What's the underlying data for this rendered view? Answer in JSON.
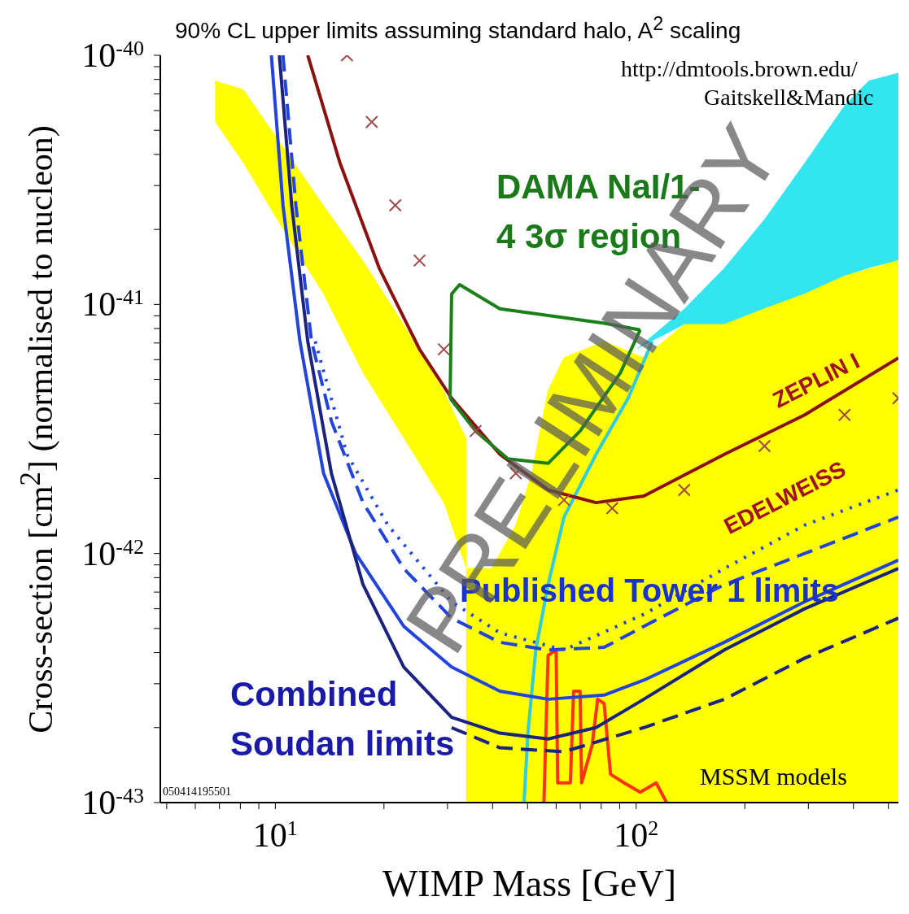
{
  "chart_data": {
    "type": "line",
    "title": "90% CL upper limits assuming standard halo, A$^{2}$ scaling",
    "xlabel": "WIMP Mass [GeV]",
    "ylabel": "Cross-section [cm$^{2}$] (normalised to nucleon)",
    "log": "xy",
    "xlim": [
      4.8,
      533
    ],
    "ylim": [
      1e-43,
      1e-40
    ],
    "xticks": [
      {
        "value": 5,
        "label": null
      },
      {
        "value": 6,
        "label": null
      },
      {
        "value": 7,
        "label": null
      },
      {
        "value": 8,
        "label": null
      },
      {
        "value": 9,
        "label": null
      },
      {
        "value": 10,
        "label": "10$^{1}$"
      },
      {
        "value": 20,
        "label": null
      },
      {
        "value": 30,
        "label": null
      },
      {
        "value": 40,
        "label": null
      },
      {
        "value": 50,
        "label": null
      },
      {
        "value": 60,
        "label": null
      },
      {
        "value": 70,
        "label": null
      },
      {
        "value": 80,
        "label": null
      },
      {
        "value": 90,
        "label": null
      },
      {
        "value": 100,
        "label": "10$^{2}$"
      },
      {
        "value": 200,
        "label": null
      },
      {
        "value": 300,
        "label": null
      },
      {
        "value": 400,
        "label": null
      },
      {
        "value": 500,
        "label": null
      }
    ],
    "yticks": [
      {
        "value": 1e-43,
        "label": "10$^{-43}$"
      },
      {
        "value": 2e-43,
        "label": null
      },
      {
        "value": 3e-43,
        "label": null
      },
      {
        "value": 4e-43,
        "label": null
      },
      {
        "value": 5e-43,
        "label": null
      },
      {
        "value": 6e-43,
        "label": null
      },
      {
        "value": 7e-43,
        "label": null
      },
      {
        "value": 8e-43,
        "label": null
      },
      {
        "value": 9e-43,
        "label": null
      },
      {
        "value": 1e-42,
        "label": "10$^{-42}$"
      },
      {
        "value": 2e-42,
        "label": null
      },
      {
        "value": 3e-42,
        "label": null
      },
      {
        "value": 4e-42,
        "label": null
      },
      {
        "value": 5e-42,
        "label": null
      },
      {
        "value": 6e-42,
        "label": null
      },
      {
        "value": 7e-42,
        "label": null
      },
      {
        "value": 8e-42,
        "label": null
      },
      {
        "value": 9e-42,
        "label": null
      },
      {
        "value": 1e-41,
        "label": "10$^{-41}$"
      },
      {
        "value": 2e-41,
        "label": null
      },
      {
        "value": 3e-41,
        "label": null
      },
      {
        "value": 4e-41,
        "label": null
      },
      {
        "value": 5e-41,
        "label": null
      },
      {
        "value": 6e-41,
        "label": null
      },
      {
        "value": 7e-41,
        "label": null
      },
      {
        "value": 8e-41,
        "label": null
      },
      {
        "value": 9e-41,
        "label": null
      },
      {
        "value": 1e-40,
        "label": "10$^{-40}$"
      }
    ],
    "series": [
      {
        "type": "line",
        "color": "#ffff00",
        "x": [
          6.81,
          8.15,
          10.5,
          13.6,
          17.5,
          22.7,
          29.3,
          33.8
        ],
        "values": [
          null,
          null,
          null,
          null,
          null,
          null,
          null,
          null
        ],
        "upper": [
          7.9e-41,
          7.3e-41,
          4.3e-41,
          2.5e-41,
          1.5e-41,
          8.3e-42,
          4.5e-42,
          2.9e-42
        ],
        "lower": [
          5.4e-41,
          3.7e-41,
          2e-41,
          1.1e-41,
          5.3e-42,
          2.9e-42,
          1.6e-42,
          8.7e-43
        ]
      },
      {
        "type": "line",
        "color": "#33e5ee",
        "x": [
          100,
          135.9,
          175.5,
          226.8,
          293,
          378,
          441,
          533
        ],
        "values": [
          null,
          null,
          null,
          null,
          null,
          null,
          null,
          null
        ],
        "upper": [
          6.6e-42,
          9.6e-42,
          1.4e-41,
          2.2e-41,
          3.7e-41,
          6.3e-41,
          7.9e-41,
          8.5e-41
        ],
        "lower": [
          6.6e-42,
          8.3e-42,
          8.3e-42,
          9.6e-42,
          1.1e-41,
          1.3e-41,
          1.4e-41,
          1.5e-41
        ]
      },
      {
        "type": "area",
        "color": "#ffff00",
        "x": [
          33.8,
          39.8,
          46.4,
          51.4,
          57.0,
          63.1,
          81.5,
          105,
          135.9,
          175.5,
          226.8,
          293,
          378,
          533
        ],
        "values": [
          8.7e-43,
          8.7e-43,
          1.3e-42,
          2.1e-42,
          4.5e-42,
          6.1e-42,
          7.1e-42,
          6.1e-42,
          8.3e-42,
          8.3e-42,
          9.6e-42,
          1.1e-41,
          1.3e-41,
          1.5e-41
        ]
      },
      {
        "color": "#33ccdd",
        "line_style": "solid",
        "x": [
          48.9,
          50.1,
          52.7,
          57.0,
          63.1,
          77.4,
          95.0,
          110.8
        ],
        "values": [
          1e-43,
          1.9e-43,
          4.1e-43,
          7.5e-43,
          1.4e-42,
          2.5e-42,
          4.2e-42,
          7.1e-42
        ]
      },
      {
        "color": "#ff3311",
        "line_style": "solid",
        "x": [
          55.5,
          57.0,
          60.0,
          60.6,
          65.7,
          67.1,
          69.9,
          70.6,
          75.5,
          78.2,
          81.5,
          84.9,
          92.6,
          102.6,
          113.6,
          121.4
        ],
        "values": [
          1e-43,
          3.9e-43,
          4.1e-43,
          1.2e-43,
          1.2e-43,
          2.8e-43,
          2.8e-43,
          1.2e-43,
          1.7e-43,
          2.6e-43,
          2.5e-43,
          1.3e-43,
          1.2e-43,
          1.1e-43,
          1.2e-43,
          1e-43
        ]
      },
      {
        "type": "scatter",
        "color": "#a04848",
        "marker": "cross",
        "x": [
          15.8,
          18.5,
          21.5,
          25.1,
          29.3,
          35.9,
          46.4,
          63.1,
          85.8,
          135.9,
          226.8,
          378,
          533
        ],
        "values": [
          1e-40,
          5.4e-41,
          2.5e-41,
          1.5e-41,
          6.6e-42,
          3.1e-42,
          2.1e-42,
          1.64e-42,
          1.52e-42,
          1.8e-42,
          2.7e-42,
          3.6e-42,
          4.2e-42
        ]
      },
      {
        "color": "#8b1010",
        "line_style": "solid",
        "x": [
          12.3,
          15.1,
          19.4,
          25.1,
          30.8,
          41.9,
          57.0,
          77.4,
          105,
          175.5,
          293,
          533
        ],
        "values": [
          1e-40,
          3.7e-41,
          1.4e-41,
          6.6e-42,
          4.2e-42,
          2.5e-42,
          1.8e-42,
          1.6e-42,
          1.7e-42,
          2.5e-42,
          3.6e-42,
          6.1e-42
        ]
      },
      {
        "color": "#1a801a",
        "line_style": "solid",
        "x": [
          30.5,
          30.8,
          32.4,
          41.9,
          81.5,
          102.6
        ],
        "values": [
          4.2e-42,
          1.1e-41,
          1.2e-41,
          9.6e-42,
          8.4e-42,
          7.9e-42
        ]
      },
      {
        "color": "#1a801a",
        "line_style": "solid",
        "x": [
          30.5,
          35.9,
          44.1,
          57.0,
          69.9,
          90.3,
          102.6
        ],
        "values": [
          4.2e-42,
          3.1e-42,
          2.4e-42,
          2.3e-42,
          3.1e-42,
          5.3e-42,
          7.9e-42
        ]
      },
      {
        "color": "#2244dd",
        "line_style": "dotted",
        "x": [
          12.9,
          15.8,
          20.5,
          30.8,
          41.9,
          63.1,
          105,
          175.5,
          293,
          533
        ],
        "values": [
          7.1e-42,
          2.5e-42,
          1.3e-42,
          6.4e-43,
          4.8e-43,
          4.1e-43,
          5.7e-43,
          8.7e-43,
          1.3e-42,
          1.8e-42
        ]
      },
      {
        "color": "#2244dd",
        "line_style": "dashed",
        "x": [
          10.5,
          11.4,
          12.6,
          14.3,
          17.5,
          22.7,
          30.8,
          41.9,
          57.0,
          81.5,
          105,
          175.5,
          293,
          533
        ],
        "values": [
          1e-40,
          2.5e-41,
          7.1e-42,
          3.4e-42,
          1.6e-42,
          8.7e-43,
          5.5e-43,
          4.4e-43,
          4.1e-43,
          4.2e-43,
          5.1e-43,
          7.5e-43,
          1e-42,
          1.4e-42
        ]
      },
      {
        "color": "#2244dd",
        "line_style": "solid",
        "x": [
          9.75,
          10.5,
          11.7,
          13.6,
          16.7,
          22.7,
          30.8,
          41.9,
          57.0,
          81.5,
          105,
          175.5,
          293,
          533
        ],
        "values": [
          1e-40,
          2.5e-41,
          7.1e-42,
          2.1e-42,
          1e-42,
          5.1e-43,
          3.5e-43,
          2.8e-43,
          2.6e-43,
          2.7e-43,
          3.1e-43,
          4.4e-43,
          6.4e-43,
          9.4e-43
        ]
      },
      {
        "color": "#1a237e",
        "line_style": "dashed",
        "x": [
          30.8,
          41.9,
          63.1,
          105,
          175.5,
          293,
          533
        ],
        "values": [
          2e-43,
          1.66e-43,
          1.6e-43,
          2e-43,
          2.6e-43,
          3.8e-43,
          5.5e-43
        ]
      },
      {
        "color": "#1a237e",
        "line_style": "solid",
        "x": [
          10.26,
          11.1,
          12.3,
          14.3,
          17.5,
          22.7,
          30.8,
          41.9,
          57.0,
          77.4,
          105,
          175.5,
          293,
          533
        ],
        "values": [
          1e-40,
          2.5e-41,
          7.1e-42,
          2.1e-42,
          7.5e-43,
          3.5e-43,
          2.2e-43,
          1.9e-43,
          1.8e-43,
          2e-43,
          2.6e-43,
          4.1e-43,
          6e-43,
          8.7e-43
        ]
      }
    ],
    "annotations": [
      "DAMA NaI/1-4 3σ region",
      "ZEPLIN I",
      "EDELWEISS",
      "Published Tower 1 limits",
      "Combined Soudan limits",
      "MSSM models",
      "http://dmtools.brown.edu/",
      "Gaitskell&Mandic",
      "050414195501",
      "PRELIMINARY"
    ]
  }
}
